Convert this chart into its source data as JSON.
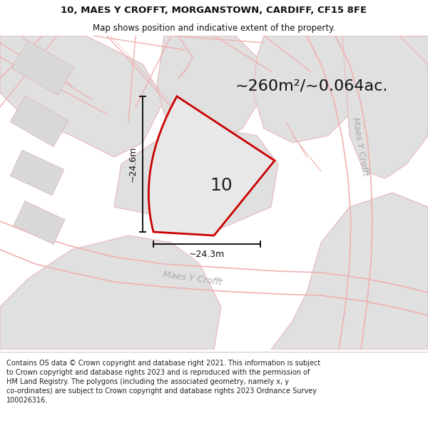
{
  "title_line1": "10, MAES Y CROFFT, MORGANSTOWN, CARDIFF, CF15 8FE",
  "title_line2": "Map shows position and indicative extent of the property.",
  "area_label": "~260m²/~0.064ac.",
  "plot_number": "10",
  "dim_vertical": "~24.6m",
  "dim_horizontal": "~24.3m",
  "road_label_right": "Maes Y Crofft",
  "road_label_bottom": "Maes Y Crofft",
  "footer_text": "Contains OS data © Crown copyright and database right 2021. This information is subject to Crown copyright and database rights 2023 and is reproduced with the permission of HM Land Registry. The polygons (including the associated geometry, namely x, y co-ordinates) are subject to Crown copyright and database rights 2023 Ordnance Survey 100026316.",
  "map_bg": "#f8f8f8",
  "plot_fill": "#e8e8e8",
  "plot_edge_color": "#cc0000",
  "road_line_color": "#f0b0b0",
  "road_fill_color": "#f5e8e8",
  "building_fill": "#d8d8d8",
  "building_edge": "#e0b0b0",
  "block_fill": "#e0e0e0",
  "block_edge": "#e8b8b8",
  "white": "#ffffff",
  "footer_bg": "#ffffff",
  "title_fontsize": 9.5,
  "subtitle_fontsize": 8.5,
  "area_fontsize": 16,
  "number_fontsize": 18,
  "dim_fontsize": 9,
  "road_fontsize": 9
}
